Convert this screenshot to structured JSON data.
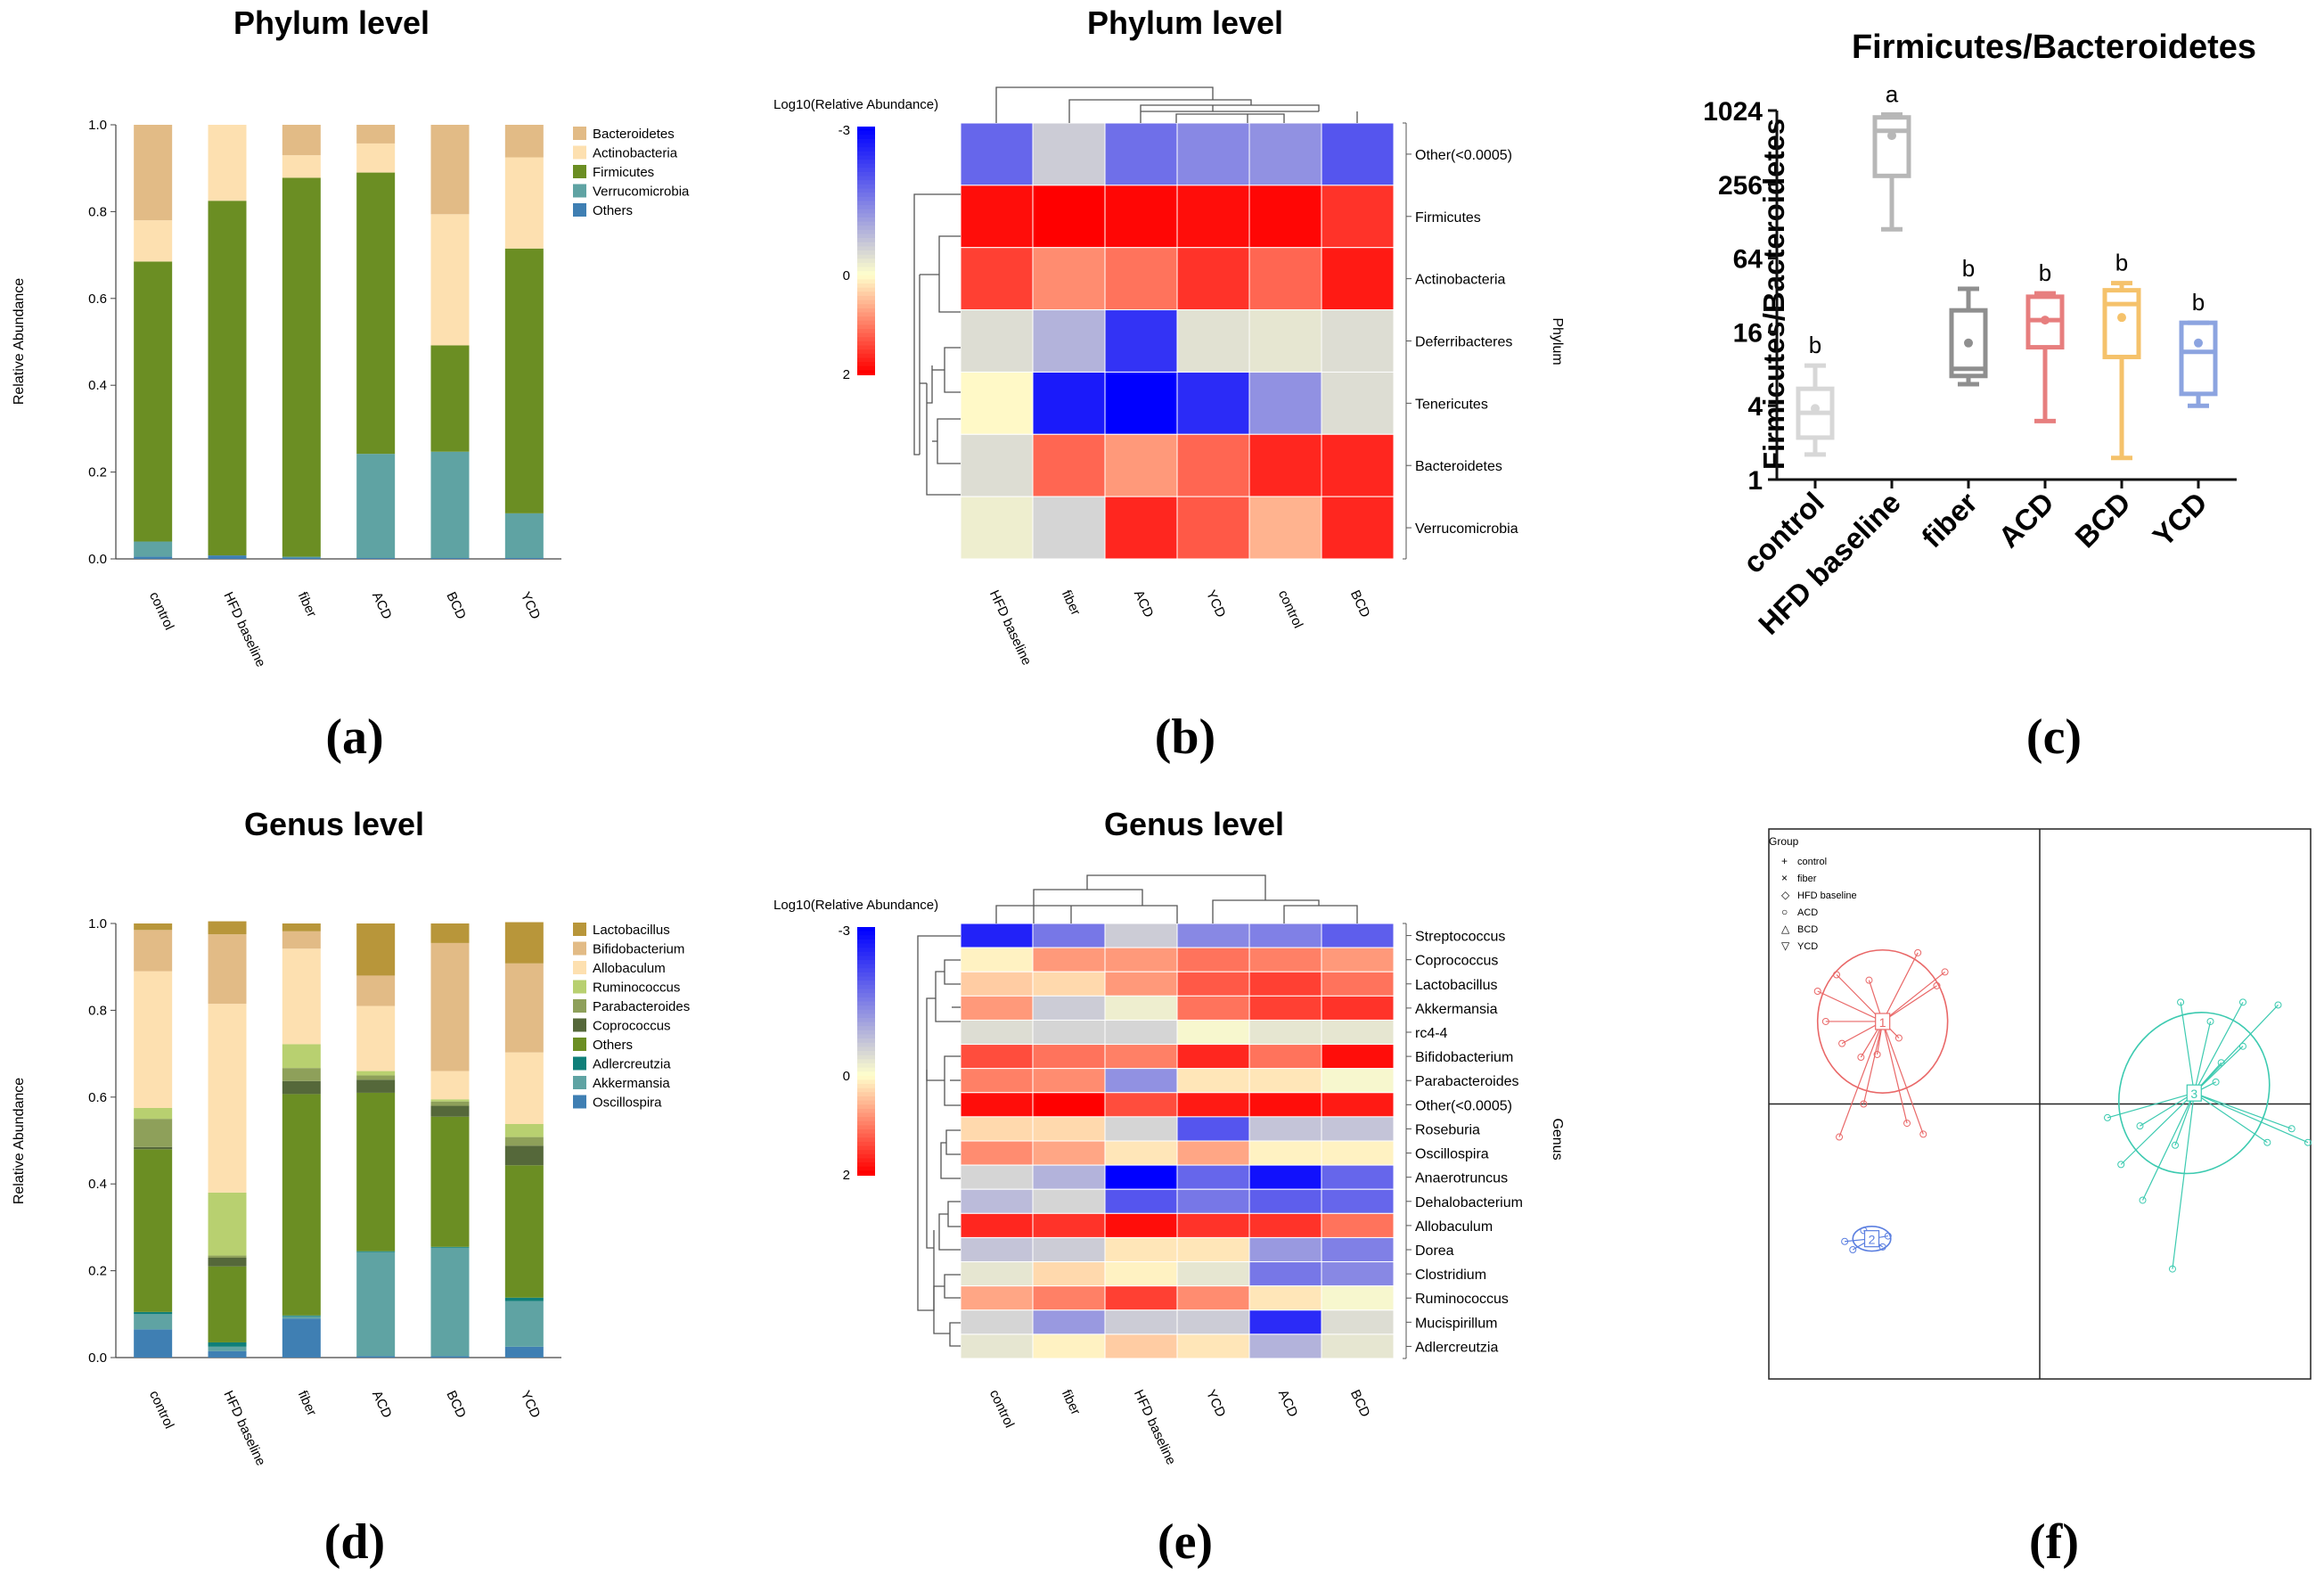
{
  "chart_data": [
    {
      "panel": "(a)",
      "type": "bar",
      "stacked": true,
      "title": "Phylum level",
      "ylabel": "Relative Abundance",
      "ylim": [
        0,
        1
      ],
      "yticks": [
        "0.0",
        "0.2",
        "0.4",
        "0.6",
        "0.8",
        "1.0"
      ],
      "categories": [
        "control",
        "HFD baseline",
        "fiber",
        "ACD",
        "BCD",
        "YCD"
      ],
      "series": [
        {
          "name": "Others",
          "color": "#3f7fb3",
          "values": [
            0.005,
            0.008,
            0.003,
            0.002,
            0.002,
            0.002
          ]
        },
        {
          "name": "Verrucomicrobia",
          "color": "#5fa3a3",
          "values": [
            0.035,
            0.0,
            0.002,
            0.24,
            0.245,
            0.103
          ]
        },
        {
          "name": "Firmicutes",
          "color": "#6b8e23",
          "values": [
            0.645,
            0.817,
            0.873,
            0.648,
            0.245,
            0.61
          ]
        },
        {
          "name": "Actinobacteria",
          "color": "#fde0b0",
          "values": [
            0.095,
            0.175,
            0.052,
            0.067,
            0.302,
            0.21
          ]
        },
        {
          "name": "Bacteroidetes",
          "color": "#e2bb86",
          "values": [
            0.22,
            0.0,
            0.07,
            0.043,
            0.206,
            0.075
          ]
        }
      ],
      "legend_order": [
        "Bacteroidetes",
        "Actinobacteria",
        "Firmicutes",
        "Verrucomicrobia",
        "Others"
      ],
      "legend": "right"
    },
    {
      "panel": "(b)",
      "type": "heatmap",
      "title": "Phylum level",
      "colorbar_title": "Log10(Relative Abundance)",
      "colorbar_ticks": [
        "-3",
        "0",
        "2"
      ],
      "side_label": "Phylum",
      "columns": [
        "HFD baseline",
        "fiber",
        "ACD",
        "YCD",
        "control",
        "BCD"
      ],
      "rows": [
        "Other(<0.0005)",
        "Firmicutes",
        "Actinobacteria",
        "Deferribacteres",
        "Tenericutes",
        "Bacteroidetes",
        "Verrucomicrobia"
      ],
      "values": [
        [
          -1.8,
          -0.6,
          -1.7,
          -1.4,
          -1.3,
          -2.0
        ],
        [
          1.9,
          2.0,
          1.95,
          1.9,
          1.95,
          1.6
        ],
        [
          1.5,
          0.9,
          1.1,
          1.6,
          1.2,
          1.8
        ],
        [
          -0.4,
          -0.9,
          -2.4,
          -0.35,
          -0.3,
          -0.4
        ],
        [
          0.05,
          -2.7,
          -3.0,
          -2.5,
          -1.3,
          -0.4
        ],
        [
          -0.4,
          1.2,
          0.8,
          1.2,
          1.7,
          1.7
        ],
        [
          -0.2,
          -0.5,
          1.7,
          1.3,
          0.6,
          1.7
        ]
      ]
    },
    {
      "panel": "(c)",
      "type": "box",
      "title": "Firmicutes/Bacteroidetes",
      "ylabel": "Firmicutes/Bacteroidetes",
      "yscale": "log2",
      "ylim": [
        1,
        1024
      ],
      "yticks": [
        "1",
        "4",
        "16",
        "64",
        "256",
        "1024"
      ],
      "categories": [
        "control",
        "HFD baseline",
        "fiber",
        "ACD",
        "BCD",
        "YCD"
      ],
      "boxes": [
        {
          "name": "control",
          "color": "#d7d7d7",
          "min": 1.6,
          "q1": 2.2,
          "median": 3.5,
          "q3": 5.5,
          "max": 8.5,
          "mean": 3.8,
          "sig": "b"
        },
        {
          "name": "HFD baseline",
          "color": "#b7b7b7",
          "min": 110,
          "q1": 300,
          "median": 700,
          "q3": 900,
          "max": 950,
          "mean": 640,
          "sig": "a"
        },
        {
          "name": "fiber",
          "color": "#8f8f8f",
          "min": 6,
          "q1": 7,
          "median": 8,
          "q3": 24,
          "max": 36,
          "mean": 13,
          "sig": "b"
        },
        {
          "name": "ACD",
          "color": "#e77e7e",
          "min": 3,
          "q1": 12,
          "median": 20,
          "q3": 31,
          "max": 33,
          "mean": 20,
          "sig": "b"
        },
        {
          "name": "BCD",
          "color": "#f5c26b",
          "min": 1.5,
          "q1": 10,
          "median": 27,
          "q3": 35,
          "max": 40,
          "mean": 21,
          "sig": "b"
        },
        {
          "name": "YCD",
          "color": "#8ca4e0",
          "min": 4,
          "q1": 5,
          "median": 11,
          "q3": 19,
          "max": 19,
          "mean": 13,
          "sig": "b"
        }
      ]
    },
    {
      "panel": "(d)",
      "type": "bar",
      "stacked": true,
      "title": "Genus level",
      "ylabel": "Relative Abundance",
      "ylim": [
        0,
        1
      ],
      "yticks": [
        "0.0",
        "0.2",
        "0.4",
        "0.6",
        "0.8",
        "1.0"
      ],
      "categories": [
        "control",
        "HFD baseline",
        "fiber",
        "ACD",
        "BCD",
        "YCD"
      ],
      "series": [
        {
          "name": "Oscillospira",
          "color": "#3f7fb3",
          "values": [
            0.065,
            0.015,
            0.09,
            0.003,
            0.003,
            0.025
          ]
        },
        {
          "name": "Akkermansia",
          "color": "#5fa3a3",
          "values": [
            0.035,
            0.01,
            0.005,
            0.24,
            0.25,
            0.105
          ]
        },
        {
          "name": "Adlercreutzia",
          "color": "#0f7f79",
          "values": [
            0.005,
            0.01,
            0.002,
            0.002,
            0.002,
            0.008
          ]
        },
        {
          "name": "Others",
          "color": "#6b8e23",
          "values": [
            0.375,
            0.175,
            0.51,
            0.365,
            0.3,
            0.305
          ]
        },
        {
          "name": "Coprococcus",
          "color": "#55683a",
          "values": [
            0.005,
            0.02,
            0.03,
            0.03,
            0.025,
            0.045
          ]
        },
        {
          "name": "Parabacteroides",
          "color": "#8ea05a",
          "values": [
            0.065,
            0.005,
            0.03,
            0.01,
            0.01,
            0.02
          ]
        },
        {
          "name": "Ruminococcus",
          "color": "#b8d070",
          "values": [
            0.025,
            0.145,
            0.055,
            0.01,
            0.005,
            0.03
          ]
        },
        {
          "name": "Allobaculum",
          "color": "#fde0b0",
          "values": [
            0.315,
            0.435,
            0.22,
            0.15,
            0.065,
            0.165
          ]
        },
        {
          "name": "Bifidobacterium",
          "color": "#e2bb86",
          "values": [
            0.095,
            0.16,
            0.04,
            0.07,
            0.295,
            0.205
          ]
        },
        {
          "name": "Lactobacillus",
          "color": "#b8963a",
          "values": [
            0.015,
            0.03,
            0.018,
            0.12,
            0.045,
            0.095
          ]
        }
      ],
      "legend_order": [
        "Lactobacillus",
        "Bifidobacterium",
        "Allobaculum",
        "Ruminococcus",
        "Parabacteroides",
        "Coprococcus",
        "Others",
        "Adlercreutzia",
        "Akkermansia",
        "Oscillospira"
      ],
      "legend": "right"
    },
    {
      "panel": "(e)",
      "type": "heatmap",
      "title": "Genus level",
      "colorbar_title": "Log10(Relative Abundance)",
      "colorbar_ticks": [
        "-3",
        "0",
        "2"
      ],
      "side_label": "Genus",
      "columns": [
        "control",
        "fiber",
        "HFD baseline",
        "YCD",
        "ACD",
        "BCD"
      ],
      "rows": [
        "Streptococcus",
        "Coprococcus",
        "Lactobacillus",
        "Akkermansia",
        "rc4-4",
        "Bifidobacterium",
        "Parabacteroides",
        "Other(<0.0005)",
        "Roseburia",
        "Oscillospira",
        "Anaerotruncus",
        "Dehalobacterium",
        "Allobaculum",
        "Dorea",
        "Clostridium",
        "Ruminococcus",
        "Mucispirillum",
        "Adlercreutzia"
      ],
      "values": [
        [
          -2.6,
          -1.6,
          -0.6,
          -1.4,
          -1.5,
          -1.9
        ],
        [
          0.1,
          0.8,
          0.8,
          1.1,
          1.0,
          0.8
        ],
        [
          0.4,
          0.3,
          0.8,
          1.3,
          1.5,
          1.1
        ],
        [
          0.8,
          -0.6,
          -0.2,
          1.1,
          1.5,
          1.6
        ],
        [
          -0.4,
          -0.5,
          -0.5,
          -0.1,
          -0.3,
          -0.3
        ],
        [
          1.4,
          1.1,
          1.0,
          1.7,
          1.1,
          1.9
        ],
        [
          1.0,
          0.9,
          -1.3,
          0.2,
          0.2,
          -0.1
        ],
        [
          1.9,
          2.0,
          1.4,
          1.8,
          1.9,
          1.8
        ],
        [
          0.3,
          0.3,
          -0.5,
          -2.0,
          -0.7,
          -0.7
        ],
        [
          0.9,
          0.7,
          0.2,
          0.7,
          0.1,
          0.1
        ],
        [
          -0.5,
          -0.9,
          -3.0,
          -1.8,
          -2.8,
          -1.8
        ],
        [
          -0.8,
          -0.5,
          -2.0,
          -1.6,
          -1.9,
          -1.8
        ],
        [
          1.7,
          1.6,
          1.9,
          1.6,
          1.6,
          1.1
        ],
        [
          -0.7,
          -0.6,
          0.2,
          0.2,
          -1.2,
          -1.5
        ],
        [
          -0.3,
          0.3,
          0.1,
          -0.3,
          -1.6,
          -1.4
        ],
        [
          0.7,
          1.0,
          1.5,
          0.9,
          0.2,
          -0.1
        ],
        [
          -0.5,
          -1.2,
          -0.6,
          -0.6,
          -2.5,
          -0.4
        ],
        [
          -0.3,
          0.1,
          0.4,
          0.2,
          -0.9,
          -0.3
        ]
      ]
    },
    {
      "panel": "(f)",
      "type": "scatter",
      "legend_title": "Group",
      "legend_items": [
        {
          "marker": "+",
          "label": "control"
        },
        {
          "marker": "×",
          "label": "fiber"
        },
        {
          "marker": "◇",
          "label": "HFD baseline"
        },
        {
          "marker": "○",
          "label": "ACD"
        },
        {
          "marker": "△",
          "label": "BCD"
        },
        {
          "marker": "▽",
          "label": "YCD"
        }
      ],
      "xlim": [
        -1,
        1
      ],
      "ylim": [
        -1,
        1
      ],
      "clusters": [
        {
          "id": "1",
          "color": "#e96868",
          "center": [
            -0.58,
            0.3
          ],
          "ellipse": [
            0.24,
            0.26,
            0
          ],
          "points": [
            [
              -0.35,
              0.48
            ],
            [
              -0.38,
              0.43
            ],
            [
              -0.45,
              0.55
            ],
            [
              -0.75,
              0.47
            ],
            [
              -0.82,
              0.41
            ],
            [
              -0.79,
              0.3
            ],
            [
              -0.73,
              0.22
            ],
            [
              -0.66,
              0.17
            ],
            [
              -0.6,
              0.18
            ],
            [
              -0.65,
              0.0
            ],
            [
              -0.74,
              -0.12
            ],
            [
              -0.49,
              -0.07
            ],
            [
              -0.43,
              -0.11
            ],
            [
              -0.52,
              0.24
            ],
            [
              -0.63,
              0.45
            ]
          ]
        },
        {
          "id": "2",
          "color": "#5b7fe0",
          "center": [
            -0.62,
            -0.49
          ],
          "ellipse": [
            0.07,
            0.045,
            0
          ],
          "points": [
            [
              -0.72,
              -0.5
            ],
            [
              -0.65,
              -0.46
            ],
            [
              -0.58,
              -0.52
            ],
            [
              -0.56,
              -0.48
            ],
            [
              -0.69,
              -0.53
            ]
          ]
        },
        {
          "id": "3",
          "color": "#3ccab0",
          "center": [
            0.57,
            0.04
          ],
          "ellipse": [
            0.27,
            0.3,
            28
          ],
          "points": [
            [
              0.52,
              0.37
            ],
            [
              0.63,
              0.3
            ],
            [
              0.75,
              0.37
            ],
            [
              0.88,
              0.36
            ],
            [
              0.75,
              0.21
            ],
            [
              0.67,
              0.15
            ],
            [
              0.65,
              0.08
            ],
            [
              0.84,
              -0.14
            ],
            [
              0.99,
              -0.14
            ],
            [
              0.93,
              -0.09
            ],
            [
              0.5,
              -0.15
            ],
            [
              0.3,
              -0.22
            ],
            [
              0.37,
              -0.08
            ],
            [
              0.25,
              -0.05
            ],
            [
              0.38,
              -0.35
            ],
            [
              0.49,
              -0.6
            ]
          ]
        }
      ]
    }
  ],
  "panel_labels": {
    "a": "(a)",
    "b": "(b)",
    "c": "(c)",
    "d": "(d)",
    "e": "(e)",
    "f": "(f)"
  },
  "colors": {
    "heat_low": "#0000ff",
    "heat_mid": "#ffffcc",
    "heat_high": "#ff0000",
    "axis": "#333333"
  }
}
